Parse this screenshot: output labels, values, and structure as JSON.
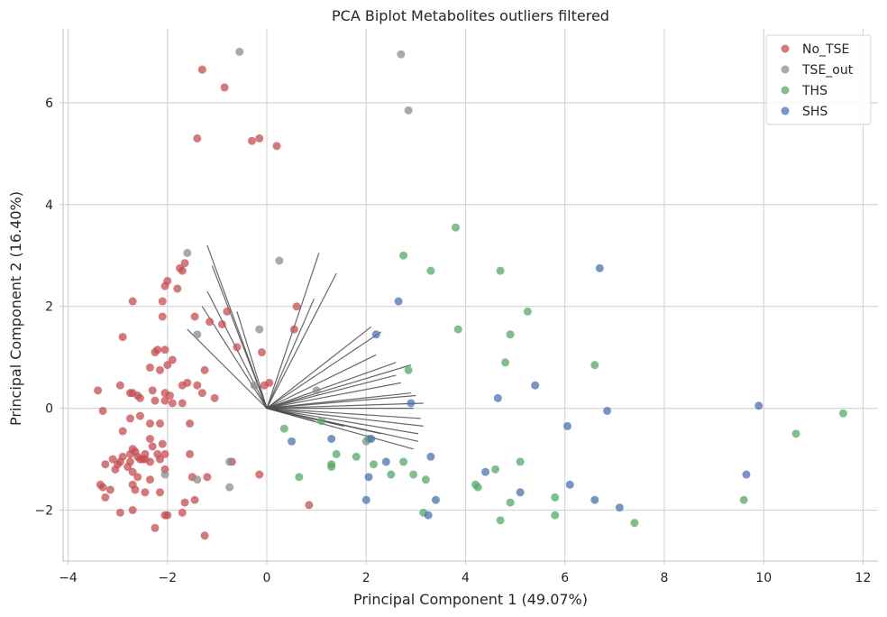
{
  "chart_data": {
    "type": "scatter",
    "title": "PCA Biplot Metabolites outliers filtered",
    "xlabel": "Principal Component 1 (49.07%)",
    "ylabel": "Principal Component 2 (16.40%)",
    "xlim": [
      -4.1,
      12.3
    ],
    "ylim": [
      -3.0,
      7.45
    ],
    "xticks": [
      -4,
      -2,
      0,
      2,
      4,
      6,
      8,
      10,
      12
    ],
    "xtick_labels": [
      "−4",
      "−2",
      "0",
      "2",
      "4",
      "6",
      "8",
      "10",
      "12"
    ],
    "yticks": [
      -2,
      0,
      2,
      4,
      6
    ],
    "ytick_labels": [
      "−2",
      "0",
      "2",
      "4",
      "6"
    ],
    "grid": true,
    "legend_position": "top-right",
    "series": [
      {
        "name": "No_TSE",
        "color": "#c44e52",
        "points": [
          [
            -1.3,
            6.65
          ],
          [
            -0.85,
            6.3
          ],
          [
            -1.4,
            5.3
          ],
          [
            -0.3,
            5.25
          ],
          [
            -0.15,
            5.3
          ],
          [
            0.2,
            5.15
          ],
          [
            -1.65,
            2.85
          ],
          [
            -1.75,
            2.75
          ],
          [
            -1.7,
            2.7
          ],
          [
            -2,
            2.5
          ],
          [
            -1.8,
            2.35
          ],
          [
            -2.05,
            2.4
          ],
          [
            -2.7,
            2.1
          ],
          [
            -2.1,
            2.1
          ],
          [
            -2.1,
            1.8
          ],
          [
            -1.45,
            1.8
          ],
          [
            -0.8,
            1.9
          ],
          [
            -1.15,
            1.7
          ],
          [
            -0.9,
            1.65
          ],
          [
            0.6,
            2.0
          ],
          [
            0.55,
            1.55
          ],
          [
            -2.9,
            1.4
          ],
          [
            -2.2,
            1.15
          ],
          [
            -2.25,
            1.1
          ],
          [
            -2.05,
            1.15
          ],
          [
            -0.6,
            1.2
          ],
          [
            -1.9,
            0.95
          ],
          [
            -2,
            0.85
          ],
          [
            -2.35,
            0.8
          ],
          [
            -2.15,
            0.75
          ],
          [
            -1.25,
            0.75
          ],
          [
            -0.1,
            1.1
          ],
          [
            -1.6,
            0.5
          ],
          [
            -1.7,
            0.45
          ],
          [
            -1.4,
            0.45
          ],
          [
            -1.3,
            0.3
          ],
          [
            -1.05,
            0.2
          ],
          [
            -3.4,
            0.35
          ],
          [
            -2.95,
            0.45
          ],
          [
            -2.7,
            0.3
          ],
          [
            -2.6,
            0.25
          ],
          [
            -2.75,
            0.3
          ],
          [
            -2.55,
            0.2
          ],
          [
            -2.3,
            0.35
          ],
          [
            -2.05,
            0.3
          ],
          [
            -1.95,
            0.25
          ],
          [
            -2.05,
            0.15
          ],
          [
            -2.25,
            0.15
          ],
          [
            -1.9,
            0.1
          ],
          [
            -1.7,
            0.1
          ],
          [
            0.05,
            0.5
          ],
          [
            -0.05,
            0.45
          ],
          [
            -3.3,
            -0.05
          ],
          [
            -2.75,
            -0.2
          ],
          [
            -2.55,
            -0.15
          ],
          [
            -2.35,
            -0.3
          ],
          [
            -2.15,
            -0.3
          ],
          [
            -1.55,
            -0.3
          ],
          [
            -2.9,
            -0.45
          ],
          [
            -2.35,
            -0.6
          ],
          [
            -2.1,
            -0.7
          ],
          [
            -2.7,
            -0.8
          ],
          [
            -2.65,
            -0.85
          ],
          [
            -2.75,
            -0.9
          ],
          [
            -2.3,
            -0.75
          ],
          [
            -2.45,
            -0.9
          ],
          [
            -2.2,
            -0.9
          ],
          [
            -2.05,
            -0.9
          ],
          [
            -2.9,
            -0.95
          ],
          [
            -3.1,
            -1.0
          ],
          [
            -3.25,
            -1.1
          ],
          [
            -3,
            -1.1
          ],
          [
            -2.95,
            -1.05
          ],
          [
            -2.75,
            -1.05
          ],
          [
            -2.6,
            -0.95
          ],
          [
            -2.55,
            -1.0
          ],
          [
            -2.5,
            -1.0
          ],
          [
            -2.45,
            -1.0
          ],
          [
            -2.35,
            -1.05
          ],
          [
            -2.15,
            -1.0
          ],
          [
            -2.8,
            -1.15
          ],
          [
            -3.05,
            -1.2
          ],
          [
            -2.7,
            -1.25
          ],
          [
            -2.6,
            -1.35
          ],
          [
            -2.05,
            -1.2
          ],
          [
            -2.35,
            -1.4
          ],
          [
            -1.55,
            -0.9
          ],
          [
            -1.5,
            -1.35
          ],
          [
            -1.2,
            -1.35
          ],
          [
            -0.7,
            -1.05
          ],
          [
            -0.15,
            -1.3
          ],
          [
            -3.35,
            -1.5
          ],
          [
            -3.3,
            -1.55
          ],
          [
            -2.7,
            -1.5
          ],
          [
            -2.65,
            -1.6
          ],
          [
            -2.45,
            -1.65
          ],
          [
            -2.15,
            -1.65
          ],
          [
            -3.15,
            -1.6
          ],
          [
            -3.25,
            -1.75
          ],
          [
            -1.65,
            -1.85
          ],
          [
            -1.45,
            -1.8
          ],
          [
            -2.05,
            -2.1
          ],
          [
            -2,
            -2.1
          ],
          [
            -1.7,
            -2.05
          ],
          [
            -2.7,
            -2.0
          ],
          [
            -2.95,
            -2.05
          ],
          [
            -2.25,
            -2.35
          ],
          [
            -1.25,
            -2.5
          ],
          [
            0.85,
            -1.9
          ]
        ]
      },
      {
        "name": "TSE_out",
        "color": "#8c8c8c",
        "points": [
          [
            -0.55,
            7.0
          ],
          [
            2.7,
            6.95
          ],
          [
            2.85,
            5.85
          ],
          [
            -1.6,
            3.05
          ],
          [
            0.25,
            2.9
          ],
          [
            -0.15,
            1.55
          ],
          [
            -1.4,
            1.45
          ],
          [
            -0.25,
            0.45
          ],
          [
            1.0,
            0.35
          ],
          [
            -0.75,
            -1.05
          ],
          [
            -0.75,
            -1.55
          ],
          [
            -1.4,
            -1.4
          ],
          [
            -2.05,
            -1.3
          ],
          [
            2.0,
            -0.65
          ]
        ]
      },
      {
        "name": "THS",
        "color": "#55a868",
        "points": [
          [
            3.8,
            3.55
          ],
          [
            2.75,
            3.0
          ],
          [
            3.3,
            2.7
          ],
          [
            4.7,
            2.7
          ],
          [
            5.25,
            1.9
          ],
          [
            3.85,
            1.55
          ],
          [
            4.9,
            1.45
          ],
          [
            4.8,
            0.9
          ],
          [
            6.6,
            0.85
          ],
          [
            2.85,
            0.75
          ],
          [
            11.6,
            -0.1
          ],
          [
            10.65,
            -0.5
          ],
          [
            0.35,
            -0.4
          ],
          [
            1.1,
            -0.25
          ],
          [
            2.05,
            -0.6
          ],
          [
            1.4,
            -0.9
          ],
          [
            1.8,
            -0.95
          ],
          [
            2.15,
            -1.1
          ],
          [
            2.75,
            -1.05
          ],
          [
            1.3,
            -1.15
          ],
          [
            1.3,
            -1.1
          ],
          [
            0.65,
            -1.35
          ],
          [
            2.5,
            -1.3
          ],
          [
            2.95,
            -1.3
          ],
          [
            3.2,
            -1.4
          ],
          [
            4.6,
            -1.2
          ],
          [
            5.1,
            -1.05
          ],
          [
            4.2,
            -1.5
          ],
          [
            4.25,
            -1.55
          ],
          [
            5.8,
            -1.75
          ],
          [
            4.9,
            -1.85
          ],
          [
            3.15,
            -2.05
          ],
          [
            5.8,
            -2.1
          ],
          [
            4.7,
            -2.2
          ],
          [
            7.4,
            -2.25
          ],
          [
            9.6,
            -1.8
          ]
        ]
      },
      {
        "name": "SHS",
        "color": "#4c72b0",
        "points": [
          [
            6.7,
            2.75
          ],
          [
            2.65,
            2.1
          ],
          [
            2.2,
            1.45
          ],
          [
            5.4,
            0.45
          ],
          [
            4.65,
            0.2
          ],
          [
            2.9,
            0.1
          ],
          [
            9.9,
            0.05
          ],
          [
            6.85,
            -0.05
          ],
          [
            6.05,
            -0.35
          ],
          [
            0.5,
            -0.65
          ],
          [
            1.3,
            -0.6
          ],
          [
            2.1,
            -0.6
          ],
          [
            2.4,
            -1.05
          ],
          [
            2.05,
            -1.35
          ],
          [
            3.3,
            -0.95
          ],
          [
            4.4,
            -1.25
          ],
          [
            9.65,
            -1.3
          ],
          [
            6.1,
            -1.5
          ],
          [
            5.1,
            -1.65
          ],
          [
            6.6,
            -1.8
          ],
          [
            7.1,
            -1.95
          ],
          [
            2.0,
            -1.8
          ],
          [
            3.4,
            -1.8
          ],
          [
            3.25,
            -2.1
          ]
        ]
      }
    ],
    "loadings": [
      [
        -1.2,
        3.2
      ],
      [
        -1.1,
        2.8
      ],
      [
        -1.2,
        2.3
      ],
      [
        -1.3,
        2.0
      ],
      [
        -1.6,
        1.55
      ],
      [
        -0.6,
        1.9
      ],
      [
        1.05,
        3.05
      ],
      [
        1.4,
        2.65
      ],
      [
        0.95,
        2.15
      ],
      [
        2.1,
        1.6
      ],
      [
        2.3,
        1.5
      ],
      [
        2.2,
        1.05
      ],
      [
        2.6,
        0.9
      ],
      [
        2.9,
        0.85
      ],
      [
        2.6,
        0.65
      ],
      [
        2.7,
        0.5
      ],
      [
        2.9,
        0.3
      ],
      [
        3.0,
        0.25
      ],
      [
        3.15,
        0.1
      ],
      [
        2.95,
        0.0
      ],
      [
        3.1,
        -0.2
      ],
      [
        3.15,
        -0.35
      ],
      [
        3.05,
        -0.5
      ],
      [
        3.05,
        -0.65
      ],
      [
        2.95,
        -0.8
      ],
      [
        2.3,
        -0.5
      ],
      [
        1.55,
        -0.35
      ],
      [
        0.95,
        -0.25
      ]
    ]
  }
}
